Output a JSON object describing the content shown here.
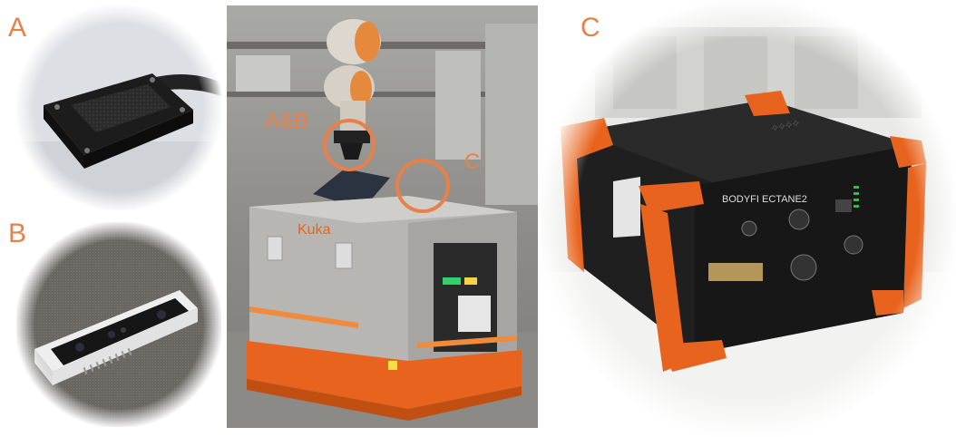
{
  "panels": {
    "a": {
      "label": "A"
    },
    "b": {
      "label": "B"
    },
    "c": {
      "label": "C"
    }
  },
  "center": {
    "marker_ab": "A&B",
    "marker_c": "C",
    "robot_brand": "Kuka"
  },
  "device_c": {
    "brand_text": "BODYFI ECTANE2"
  },
  "colors": {
    "accent": "#e8804a",
    "robot_orange": "#e8641e",
    "device_black": "#1c1c1c"
  }
}
